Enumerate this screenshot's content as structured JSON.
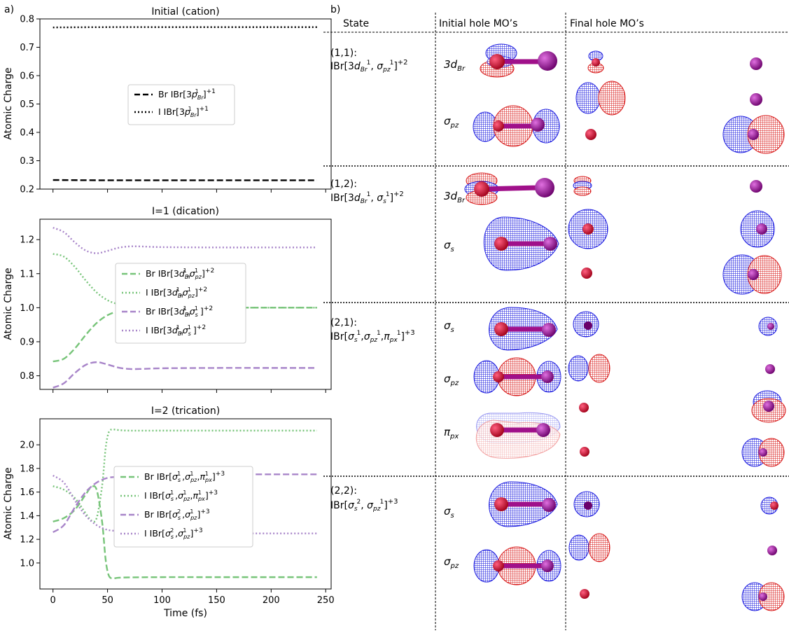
{
  "panel_labels": {
    "a": "a)",
    "b": "b)"
  },
  "chart_data": [
    {
      "type": "line",
      "title": "Initial (cation)",
      "ylabel": "Atomic Charge",
      "xlabel": "",
      "xlim": [
        -12,
        255
      ],
      "ylim": [
        0.2,
        0.8
      ],
      "yticks": [
        "0.2",
        "0.3",
        "0.4",
        "0.5",
        "0.6",
        "0.7",
        "0.8"
      ],
      "xticks": [
        0,
        50,
        100,
        150,
        200,
        250
      ],
      "show_xticklabels": false,
      "legend_position": "center",
      "series": [
        {
          "name": "Br IBr[3p_Br^1]^{+1}",
          "label_parts": [
            "Br IBr[3",
            "p",
            "Br",
            "1",
            "]",
            "+1"
          ],
          "color": "#000000",
          "style": "dashed",
          "x": [
            0,
            50,
            100,
            150,
            200,
            242
          ],
          "values": [
            0.232,
            0.231,
            0.231,
            0.231,
            0.231,
            0.231
          ]
        },
        {
          "name": "I IBr[3p_Br^1]^{+1}",
          "label_parts": [
            "I IBr[3",
            "p",
            "Br",
            "1",
            "]",
            "+1"
          ],
          "color": "#000000",
          "style": "dotted",
          "x": [
            0,
            50,
            100,
            150,
            200,
            242
          ],
          "values": [
            0.77,
            0.771,
            0.771,
            0.771,
            0.771,
            0.771
          ]
        }
      ]
    },
    {
      "type": "line",
      "title": "I=1 (dication)",
      "ylabel": "Atomic Charge",
      "xlabel": "",
      "xlim": [
        -12,
        255
      ],
      "ylim": [
        0.76,
        1.26
      ],
      "yticks": [
        "0.8",
        "0.9",
        "1.0",
        "1.1",
        "1.2"
      ],
      "xticks": [
        0,
        50,
        100,
        150,
        200,
        250
      ],
      "show_xticklabels": false,
      "legend_position": "center",
      "series": [
        {
          "name": "Br IBr[3d_Br^1,σ_pz^1]^{+2}",
          "color": "#77c479",
          "style": "dashed",
          "x": [
            0,
            10,
            20,
            30,
            40,
            50,
            60,
            70,
            80,
            100,
            150,
            200,
            242
          ],
          "values": [
            0.842,
            0.85,
            0.88,
            0.92,
            0.955,
            0.978,
            0.99,
            0.996,
            0.999,
            1.0,
            1.0,
            1.0,
            1.0
          ]
        },
        {
          "name": "I IBr[3d_Br^1,σ_pz^1]^{+2}",
          "color": "#77c479",
          "style": "dotted",
          "x": [
            0,
            10,
            20,
            30,
            40,
            50,
            60,
            70,
            80,
            100,
            150,
            200,
            242
          ],
          "values": [
            1.158,
            1.15,
            1.12,
            1.08,
            1.045,
            1.022,
            1.01,
            1.004,
            1.001,
            1.0,
            1.0,
            1.0,
            1.0
          ]
        },
        {
          "name": "Br IBr[3d_Br^1,σ_s^1]^{+2}",
          "color": "#a885c9",
          "style": "dashed",
          "x": [
            0,
            10,
            20,
            30,
            40,
            50,
            60,
            70,
            80,
            100,
            150,
            200,
            242
          ],
          "values": [
            0.765,
            0.778,
            0.808,
            0.832,
            0.84,
            0.833,
            0.824,
            0.82,
            0.82,
            0.822,
            0.823,
            0.823,
            0.823
          ]
        },
        {
          "name": "I IBr[3d_Br^1,σ_s^1]^{+2}",
          "color": "#a885c9",
          "style": "dotted",
          "x": [
            0,
            10,
            20,
            30,
            40,
            50,
            60,
            70,
            80,
            100,
            150,
            200,
            242
          ],
          "values": [
            1.235,
            1.222,
            1.192,
            1.168,
            1.16,
            1.167,
            1.176,
            1.18,
            1.18,
            1.178,
            1.177,
            1.177,
            1.177
          ]
        }
      ]
    },
    {
      "type": "line",
      "title": "I=2 (trication)",
      "ylabel": "Atomic Charge",
      "xlabel": "Time (fs)",
      "xlim": [
        -12,
        255
      ],
      "ylim": [
        0.78,
        2.22
      ],
      "yticks": [
        "1.0",
        "1.2",
        "1.4",
        "1.6",
        "1.8",
        "2.0"
      ],
      "xticks": [
        0,
        50,
        100,
        150,
        200,
        250
      ],
      "show_xticklabels": true,
      "legend_position": "center",
      "series": [
        {
          "name": "Br IBr[σ_s^1,σ_pz^1,π_px^1]^{+3}",
          "color": "#77c479",
          "style": "dashed",
          "x": [
            0,
            10,
            20,
            30,
            35,
            40,
            45,
            48,
            50,
            52,
            55,
            60,
            70,
            100,
            150,
            200,
            242
          ],
          "values": [
            1.35,
            1.38,
            1.45,
            1.58,
            1.64,
            1.62,
            1.35,
            1.05,
            0.93,
            0.88,
            0.87,
            0.875,
            0.878,
            0.88,
            0.88,
            0.88,
            0.88
          ]
        },
        {
          "name": "I IBr[σ_s^1,σ_pz^1,π_px^1]^{+3}",
          "color": "#77c479",
          "style": "dotted",
          "x": [
            0,
            10,
            20,
            30,
            35,
            40,
            45,
            48,
            50,
            52,
            55,
            60,
            70,
            100,
            150,
            200,
            242
          ],
          "values": [
            1.65,
            1.62,
            1.55,
            1.42,
            1.36,
            1.38,
            1.65,
            1.95,
            2.07,
            2.12,
            2.13,
            2.125,
            2.12,
            2.12,
            2.12,
            2.12,
            2.12
          ]
        },
        {
          "name": "Br IBr[σ_s^2,σ_pz^1]^{+3}",
          "color": "#a885c9",
          "style": "dashed",
          "x": [
            0,
            10,
            20,
            30,
            40,
            50,
            60,
            70,
            100,
            150,
            200,
            242
          ],
          "values": [
            1.26,
            1.32,
            1.47,
            1.6,
            1.68,
            1.72,
            1.73,
            1.745,
            1.75,
            1.75,
            1.75,
            1.75
          ]
        },
        {
          "name": "I IBr[σ_s^2,σ_pz^1]^{+3}",
          "color": "#a885c9",
          "style": "dotted",
          "x": [
            0,
            10,
            20,
            30,
            40,
            50,
            60,
            70,
            100,
            150,
            200,
            242
          ],
          "values": [
            1.74,
            1.68,
            1.53,
            1.4,
            1.32,
            1.28,
            1.27,
            1.255,
            1.25,
            1.25,
            1.25,
            1.25
          ]
        }
      ]
    }
  ],
  "table": {
    "headers": [
      "State",
      "Initial hole MO’s",
      "Final hole MO’s"
    ],
    "rows": [
      {
        "state": "(1,1):",
        "config": "IBr[3d_Br^1, σ_pz^1]^+2",
        "orbitals": [
          "3d_Br",
          "σ_pz"
        ]
      },
      {
        "state": "(1,2):",
        "config": "IBr[3d_Br^1, σ_s^1]^+2",
        "orbitals": [
          "3d_Br",
          "σ_s"
        ]
      },
      {
        "state": "(2,1):",
        "config": "IBr[σ_s^1,σ_pz^1,π_px^1]^+3",
        "orbitals": [
          "σ_s",
          "σ_pz",
          "π_px"
        ]
      },
      {
        "state": "(2,2):",
        "config": "IBr[σ_s^2, σ_pz^1]^+3",
        "orbitals": [
          "σ_s",
          "σ_pz"
        ]
      }
    ]
  },
  "colors": {
    "positive_lobe": "#1a1adf",
    "negative_lobe": "#d81818",
    "atom_i": "#8a0f8a",
    "atom_br": "#c8102e"
  }
}
